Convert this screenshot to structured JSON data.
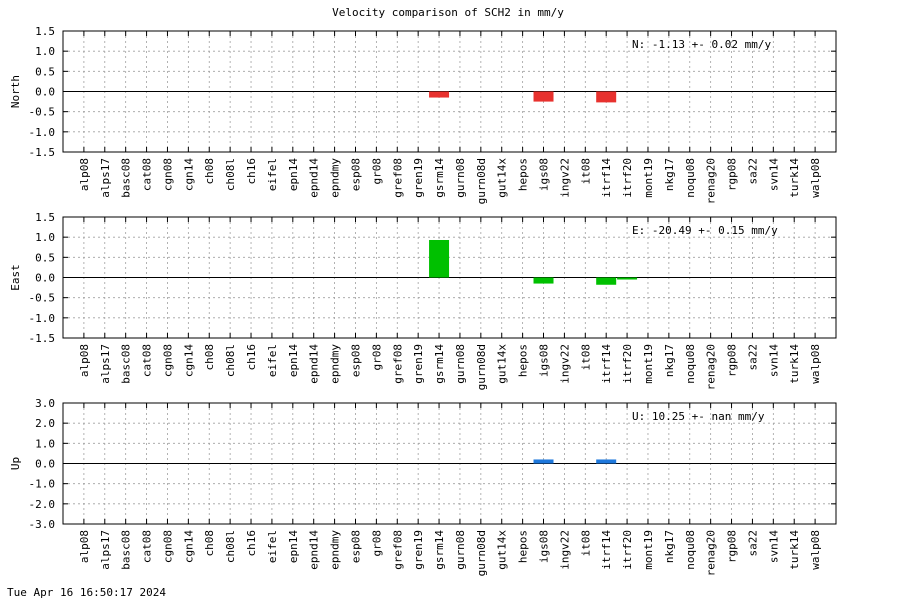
{
  "title": "Velocity comparison of SCH2 in mm/y",
  "footer_timestamp": "Tue Apr 16 16:50:17 2024",
  "chart_data": [
    {
      "type": "bar",
      "ylabel": "North",
      "ylim": [
        -1.5,
        1.5
      ],
      "yticks": [
        "1.5",
        "1.0",
        "0.5",
        "0.0",
        "-0.5",
        "-1.0",
        "-1.5"
      ],
      "grid": true,
      "annotation": "N:  -1.13 +-  0.02 mm/y",
      "color": "#e8312e",
      "categories": [
        "alp08",
        "alps17",
        "basc08",
        "cat08",
        "cgn08",
        "cgn14",
        "ch08",
        "ch08l",
        "ch16",
        "eifel",
        "epn14",
        "epnd14",
        "epndmy",
        "esp08",
        "gr08",
        "gref08",
        "gren19",
        "gsrm14",
        "gurn08",
        "gurn08d",
        "gut14x",
        "hepos",
        "igs08",
        "ingv22",
        "it08",
        "itrf14",
        "itrf20",
        "mont19",
        "nkg17",
        "noqu08",
        "renag20",
        "rgp08",
        "sa22",
        "svn14",
        "turk14",
        "walp08"
      ],
      "values": [
        0,
        0,
        0,
        0,
        0,
        0,
        0,
        0,
        0,
        0,
        0,
        0,
        0,
        0,
        0,
        0,
        0,
        -0.15,
        0,
        0,
        0,
        0,
        -0.25,
        0,
        0,
        -0.27,
        0,
        0,
        0,
        0,
        0,
        0,
        0,
        0,
        0,
        0
      ]
    },
    {
      "type": "bar",
      "ylabel": "East",
      "ylim": [
        -1.5,
        1.5
      ],
      "yticks": [
        "1.5",
        "1.0",
        "0.5",
        "0.0",
        "-0.5",
        "-1.0",
        "-1.5"
      ],
      "grid": true,
      "annotation": "E: -20.49 +-  0.15 mm/y",
      "color": "#00c000",
      "categories": [
        "alp08",
        "alps17",
        "basc08",
        "cat08",
        "cgn08",
        "cgn14",
        "ch08",
        "ch08l",
        "ch16",
        "eifel",
        "epn14",
        "epnd14",
        "epndmy",
        "esp08",
        "gr08",
        "gref08",
        "gren19",
        "gsrm14",
        "gurn08",
        "gurn08d",
        "gut14x",
        "hepos",
        "igs08",
        "ingv22",
        "it08",
        "itrf14",
        "itrf20",
        "mont19",
        "nkg17",
        "noqu08",
        "renag20",
        "rgp08",
        "sa22",
        "svn14",
        "turk14",
        "walp08"
      ],
      "values": [
        0,
        0,
        0,
        0,
        0,
        0,
        0,
        0,
        0,
        0,
        0,
        0,
        0,
        0,
        0,
        0,
        0,
        0.93,
        0,
        0,
        0,
        0,
        -0.15,
        0,
        0,
        -0.18,
        -0.05,
        0,
        0,
        0,
        0,
        0,
        0,
        0,
        0,
        0
      ]
    },
    {
      "type": "bar",
      "ylabel": "Up",
      "ylim": [
        -3.0,
        3.0
      ],
      "yticks": [
        "3.0",
        "2.0",
        "1.0",
        "0.0",
        "-1.0",
        "-2.0",
        "-3.0"
      ],
      "grid": true,
      "annotation": "U:  10.25 +-   nan mm/y",
      "color": "#1e78dc",
      "categories": [
        "alp08",
        "alps17",
        "basc08",
        "cat08",
        "cgn08",
        "cgn14",
        "ch08",
        "ch08l",
        "ch16",
        "eifel",
        "epn14",
        "epnd14",
        "epndmy",
        "esp08",
        "gr08",
        "gref08",
        "gren19",
        "gsrm14",
        "gurn08",
        "gurn08d",
        "gut14x",
        "hepos",
        "igs08",
        "ingv22",
        "it08",
        "itrf14",
        "itrf20",
        "mont19",
        "nkg17",
        "noqu08",
        "renag20",
        "rgp08",
        "sa22",
        "svn14",
        "turk14",
        "walp08"
      ],
      "values": [
        0,
        0,
        0,
        0,
        0,
        0,
        0,
        0,
        0,
        0,
        0,
        0,
        0,
        0,
        0,
        0,
        0,
        0,
        0,
        0,
        0,
        0,
        0.2,
        0,
        0,
        0.2,
        0,
        0,
        0,
        0,
        0,
        0,
        0,
        0,
        0,
        0
      ]
    }
  ]
}
